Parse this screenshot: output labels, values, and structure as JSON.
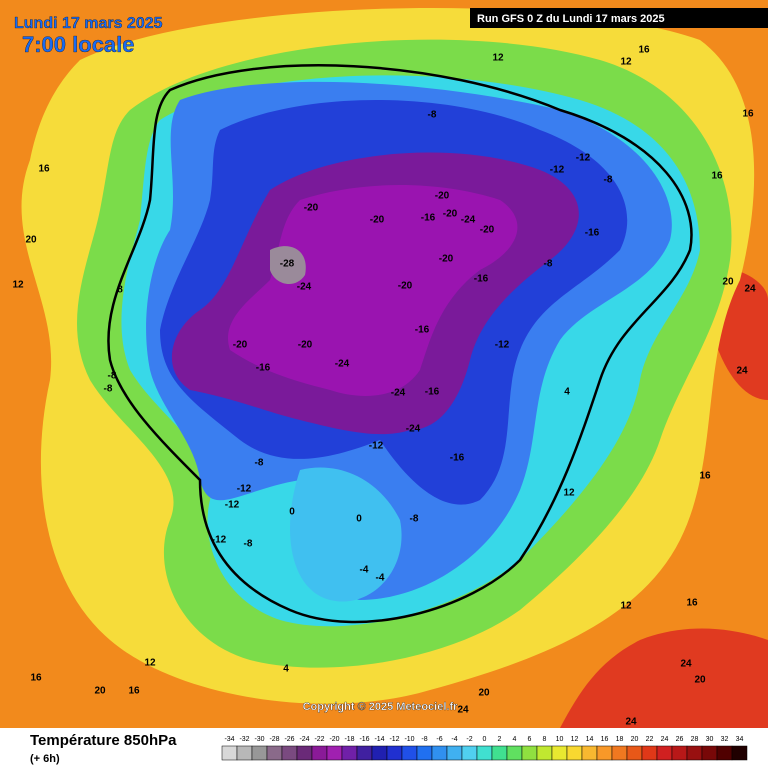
{
  "header": {
    "date": "Lundi 17 mars 2025",
    "time": "7:00 locale",
    "run": "Run GFS 0 Z du Lundi 17 mars 2025"
  },
  "map": {
    "copyright": "Copyright © 2025 Meteociel.fr",
    "contour_labels": [
      -8,
      -12,
      -12,
      -8,
      -20,
      -20,
      -20,
      -16,
      -20,
      -24,
      -20,
      -16,
      -28,
      -24,
      -20,
      -20,
      -16,
      -8,
      -16,
      -12,
      -20,
      -20,
      -16,
      -24,
      -24,
      -16,
      -24,
      -12,
      -16,
      -8,
      -12,
      -12,
      -12,
      -8,
      0,
      0,
      -8,
      -4,
      -4,
      4,
      12,
      16,
      12,
      12,
      16,
      16,
      16,
      24,
      20,
      24,
      16,
      12,
      16,
      20,
      24,
      12,
      16,
      20,
      4,
      16,
      24,
      20,
      24,
      -8,
      -8,
      12,
      8,
      20
    ]
  },
  "legend": {
    "title": "Température 850hPa",
    "lead": "(+ 6h)",
    "scale": [
      -34,
      -32,
      -30,
      -28,
      -26,
      -24,
      -22,
      -20,
      -18,
      -16,
      -14,
      -12,
      -10,
      -8,
      -6,
      -4,
      -2,
      0,
      2,
      4,
      6,
      8,
      10,
      12,
      14,
      16,
      18,
      20,
      22,
      24,
      26,
      28,
      30,
      32,
      34
    ],
    "colors": [
      "#d8d8d8",
      "#b8b8b8",
      "#989898",
      "#8a6a8a",
      "#7a4a80",
      "#6a2a78",
      "#8a1a98",
      "#a020b0",
      "#7020a8",
      "#4020a0",
      "#2020b0",
      "#2030d0",
      "#2050e8",
      "#2070f0",
      "#3090f0",
      "#40b0f0",
      "#50d0f0",
      "#40e0d0",
      "#40e090",
      "#60e060",
      "#90e040",
      "#c0e830",
      "#e8e830",
      "#f8d830",
      "#f8b830",
      "#f89828",
      "#f07820",
      "#e85818",
      "#e03818",
      "#d02020",
      "#b81818",
      "#981010",
      "#780808",
      "#500000",
      "#200000"
    ]
  }
}
